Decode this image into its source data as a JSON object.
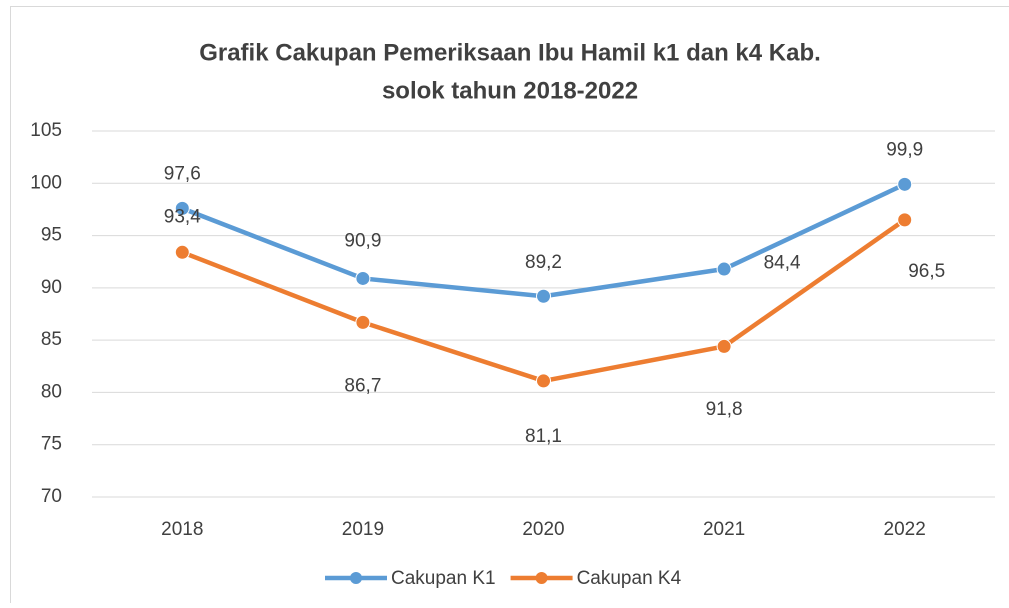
{
  "chart_data": {
    "type": "line",
    "title": "Grafik Cakupan Pemeriksaan Ibu Hamil k1 dan k4 Kab. solok tahun 2018-2022",
    "categories": [
      "2018",
      "2019",
      "2020",
      "2021",
      "2022"
    ],
    "series": [
      {
        "name": "Cakupan K1",
        "color": "#5b9bd5",
        "values": [
          97.6,
          90.9,
          89.2,
          91.8,
          99.9
        ],
        "value_labels": [
          "97,6",
          "90,9",
          "89,2",
          "91,8",
          "99,9"
        ]
      },
      {
        "name": "Cakupan K4",
        "color": "#ed7d31",
        "values": [
          93.4,
          86.7,
          81.1,
          84.4,
          96.5
        ],
        "value_labels": [
          "93,4",
          "86,7",
          "81,1",
          "84,4",
          "96,5"
        ]
      }
    ],
    "ylim": [
      70,
      105
    ],
    "yticks": [
      70,
      75,
      80,
      85,
      90,
      95,
      100,
      105
    ],
    "grid": true,
    "legend": "bottom"
  }
}
